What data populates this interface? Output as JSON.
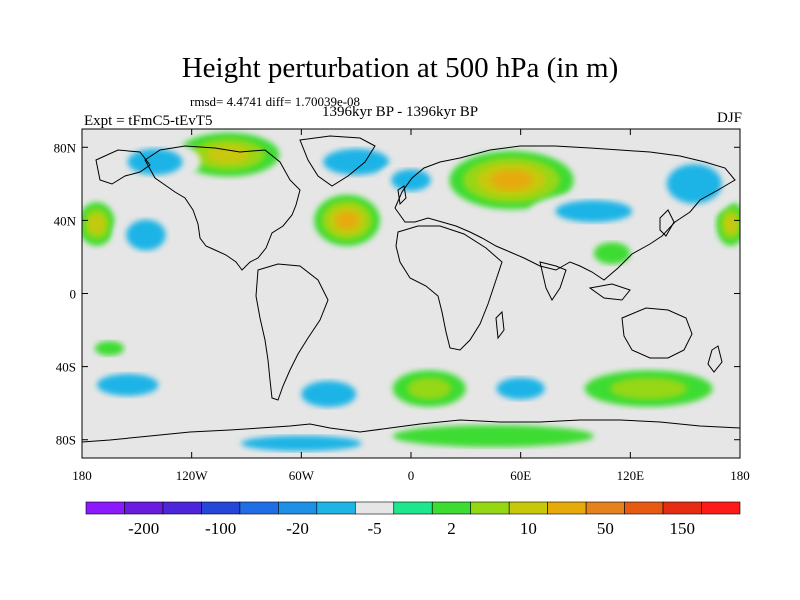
{
  "title": "Height perturbation at 500 hPa (in m)",
  "stats": "rmsd= 4.4741 diff= 1.70039e-08",
  "expt": "Expt = tFmC5-tEvT5",
  "period": "1396kyr BP - 1396kyr BP",
  "season": "DJF",
  "map": {
    "projection": "cylindrical-equidistant",
    "lon_range": [
      -180,
      180
    ],
    "lat_range": [
      -90,
      90
    ],
    "background_color": "#e6e6e6",
    "coastline_color": "#000000",
    "lat_ticks": [
      {
        "lat": 80,
        "label": "80N"
      },
      {
        "lat": 40,
        "label": "40N"
      },
      {
        "lat": 0,
        "label": "0"
      },
      {
        "lat": -40,
        "label": "40S"
      },
      {
        "lat": -80,
        "label": "80S"
      }
    ],
    "lon_ticks": [
      {
        "lon": -180,
        "label": "180"
      },
      {
        "lon": -120,
        "label": "120W"
      },
      {
        "lon": -60,
        "label": "60W"
      },
      {
        "lon": 0,
        "label": "0"
      },
      {
        "lon": 60,
        "label": "60E"
      },
      {
        "lon": 120,
        "label": "120E"
      },
      {
        "lon": 180,
        "label": "180"
      }
    ]
  },
  "colorbar": {
    "colors": [
      "#8c1aff",
      "#6b1ae0",
      "#4d26d9",
      "#2646d9",
      "#1f6ee6",
      "#1e90e6",
      "#1eb4e6",
      "#e6e6e6",
      "#1ee68c",
      "#3cdc32",
      "#96d714",
      "#c8c80a",
      "#e6aa0a",
      "#e6821e",
      "#e65a14",
      "#e62d14",
      "#ff1a1a"
    ],
    "labels": [
      "-200",
      "-100",
      "-20",
      "-5",
      "2",
      "10",
      "50",
      "150"
    ]
  },
  "chart_data": {
    "type": "heatmap",
    "variable": "Height perturbation at 500 hPa",
    "units": "m",
    "levels": [
      -200,
      -150,
      -100,
      -50,
      -20,
      -10,
      -5,
      -2,
      2,
      5,
      10,
      20,
      50,
      100,
      150,
      200
    ],
    "anomalies": [
      {
        "lon": -100,
        "lat": 76,
        "rx": 28,
        "ry": 12,
        "level": 10,
        "sign": "positive"
      },
      {
        "lon": -35,
        "lat": 40,
        "rx": 18,
        "ry": 14,
        "level": 20,
        "sign": "positive"
      },
      {
        "lon": 55,
        "lat": 62,
        "rx": 34,
        "ry": 16,
        "level": 20,
        "sign": "positive"
      },
      {
        "lon": -172,
        "lat": 38,
        "rx": 10,
        "ry": 12,
        "level": 10,
        "sign": "positive"
      },
      {
        "lon": 175,
        "lat": 38,
        "rx": 8,
        "ry": 12,
        "level": 10,
        "sign": "positive"
      },
      {
        "lon": -140,
        "lat": 72,
        "rx": 25,
        "ry": 12,
        "level": -5,
        "sign": "negative"
      },
      {
        "lon": -30,
        "lat": 72,
        "rx": 30,
        "ry": 12,
        "level": -5,
        "sign": "negative"
      },
      {
        "lon": 100,
        "lat": 45,
        "rx": 35,
        "ry": 10,
        "level": -5,
        "sign": "negative"
      },
      {
        "lon": 155,
        "lat": 60,
        "rx": 25,
        "ry": 18,
        "level": -5,
        "sign": "negative"
      },
      {
        "lon": -145,
        "lat": 32,
        "rx": 18,
        "ry": 14,
        "level": -5,
        "sign": "negative"
      },
      {
        "lon": 0,
        "lat": 62,
        "rx": 18,
        "ry": 10,
        "level": -5,
        "sign": "negative"
      },
      {
        "lon": -155,
        "lat": -50,
        "rx": 28,
        "ry": 10,
        "level": -5,
        "sign": "negative"
      },
      {
        "lon": -45,
        "lat": -55,
        "rx": 25,
        "ry": 12,
        "level": -5,
        "sign": "negative"
      },
      {
        "lon": 60,
        "lat": -52,
        "rx": 22,
        "ry": 10,
        "level": -5,
        "sign": "negative"
      },
      {
        "lon": -60,
        "lat": -82,
        "rx": 55,
        "ry": 7,
        "level": -5,
        "sign": "negative"
      },
      {
        "lon": 10,
        "lat": -52,
        "rx": 20,
        "ry": 10,
        "level": 5,
        "sign": "positive"
      },
      {
        "lon": 130,
        "lat": -52,
        "rx": 35,
        "ry": 10,
        "level": 5,
        "sign": "positive"
      },
      {
        "lon": 45,
        "lat": -78,
        "rx": 55,
        "ry": 6,
        "level": 2,
        "sign": "positive"
      },
      {
        "lon": -165,
        "lat": -30,
        "rx": 8,
        "ry": 4,
        "level": 2,
        "sign": "positive"
      },
      {
        "lon": 110,
        "lat": 22,
        "rx": 10,
        "ry": 6,
        "level": 2,
        "sign": "positive"
      }
    ]
  }
}
